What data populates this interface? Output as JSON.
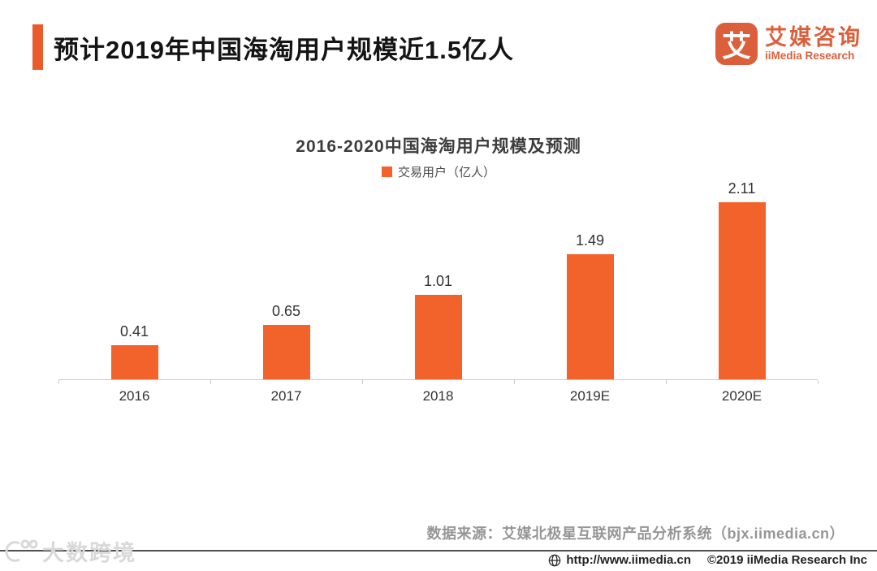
{
  "header": {
    "title": "预计2019年中国海淘用户规模近1.5亿人"
  },
  "logo": {
    "icon_char": "艾",
    "name_cn": "艾媒咨询",
    "name_en": "iiMedia Research"
  },
  "chart_data": {
    "type": "bar",
    "title": "2016-2020中国海淘用户规模及预测",
    "legend": [
      {
        "label": "交易用户（亿人）",
        "color": "#F2622B"
      }
    ],
    "legend_position": "top",
    "categories": [
      "2016",
      "2017",
      "2018",
      "2019E",
      "2020E"
    ],
    "values": [
      0.41,
      0.65,
      1.01,
      1.49,
      2.11
    ],
    "bar_color": "#F2622B",
    "xlabel": "",
    "ylabel": "交易用户（亿人）",
    "ylim": [
      0,
      2.3
    ],
    "grid": false
  },
  "source_note": "数据来源：艾媒北极星互联网产品分析系统（bjx.iimedia.cn）",
  "footer": {
    "url": "http://www.iimedia.cn",
    "copyright": "©2019  iiMedia Research Inc"
  },
  "watermark": {
    "label": "大数跨境"
  },
  "colors": {
    "accent": "#EA5B2B",
    "bar": "#F2622B",
    "logo": "#DC5F3B"
  }
}
